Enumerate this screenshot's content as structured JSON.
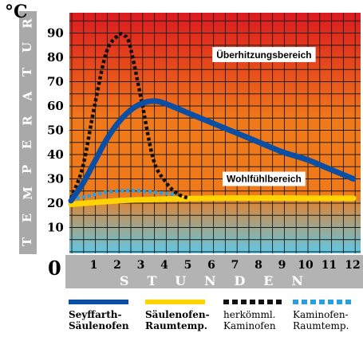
{
  "colors": {
    "seyffarth": "#0a4fa3",
    "saeulenofen": "#ffd400",
    "herkoemml": "#111111",
    "kaminofen": "#2a9fe0",
    "gradient_top": "#dc1a1f",
    "gradient_mid": "#f07a1a",
    "gradient_bottom": "#5fc8e8"
  },
  "chart_data": {
    "type": "line",
    "unit_label": "°C",
    "ylabel": "TEMPERATUR",
    "xlabel": "STUNDEN",
    "origin_label": "0",
    "ylim": [
      0,
      100
    ],
    "xlim": [
      0,
      12
    ],
    "y_ticks": [
      10,
      20,
      30,
      40,
      50,
      60,
      70,
      80,
      90
    ],
    "x_ticks": [
      1,
      2,
      3,
      4,
      5,
      6,
      7,
      8,
      9,
      10,
      11,
      12
    ],
    "grid": true,
    "annotations": [
      {
        "text": "Überhitzungsbereich",
        "x": 8.2,
        "y": 81
      },
      {
        "text": "Wohlfühlbereich",
        "x": 8.2,
        "y": 30
      }
    ],
    "series": [
      {
        "name": "Seyffarth-Säulenofen",
        "key": "seyffarth",
        "style": "solid",
        "x": [
          0,
          0.5,
          1,
          1.5,
          2,
          2.5,
          3,
          3.5,
          4,
          5,
          6,
          7,
          8,
          9,
          10,
          11,
          12
        ],
        "y": [
          21,
          28,
          37,
          46,
          53,
          58,
          61,
          62,
          61,
          57,
          53,
          49,
          45,
          41,
          38,
          34,
          30
        ]
      },
      {
        "name": "Säulenofen-Raumtemp.",
        "key": "saeulenofen",
        "style": "solid",
        "x": [
          0,
          1,
          2,
          3,
          4,
          5,
          6,
          7,
          8,
          9,
          10,
          11,
          12
        ],
        "y": [
          19.5,
          20.3,
          21,
          21.4,
          21.7,
          21.9,
          22,
          22.1,
          22.1,
          22.1,
          22,
          22,
          22
        ]
      },
      {
        "name": "herkömml. Kaminofen",
        "key": "herkoemml",
        "style": "dotted",
        "x": [
          0,
          0.5,
          1,
          1.5,
          2,
          2.25,
          2.5,
          3,
          3.5,
          4,
          4.5,
          5
        ],
        "y": [
          22,
          35,
          60,
          82,
          89,
          89,
          85,
          62,
          38,
          29,
          24,
          22
        ]
      },
      {
        "name": "Kaminofen-Raumtemp.",
        "key": "kaminofen",
        "style": "dotted",
        "x": [
          0,
          0.5,
          1,
          1.5,
          2,
          2.5,
          3,
          3.5,
          4,
          4.5
        ],
        "y": [
          21.5,
          22.5,
          23.5,
          24.5,
          25,
          25.2,
          25,
          24.5,
          24,
          23.5
        ]
      }
    ]
  },
  "legend": [
    {
      "key": "seyffarth",
      "line1": "Seyffarth-",
      "line2": "Säulenofen",
      "bold": true
    },
    {
      "key": "saeulenofen",
      "line1": "Säulenofen-",
      "line2": "Raumtemp.",
      "bold": true
    },
    {
      "key": "herkoemml",
      "line1": "herkömml.",
      "line2": "Kaminofen",
      "bold": false
    },
    {
      "key": "kaminofen",
      "line1": "Kaminofen-",
      "line2": "Raumtemp.",
      "bold": false
    }
  ]
}
